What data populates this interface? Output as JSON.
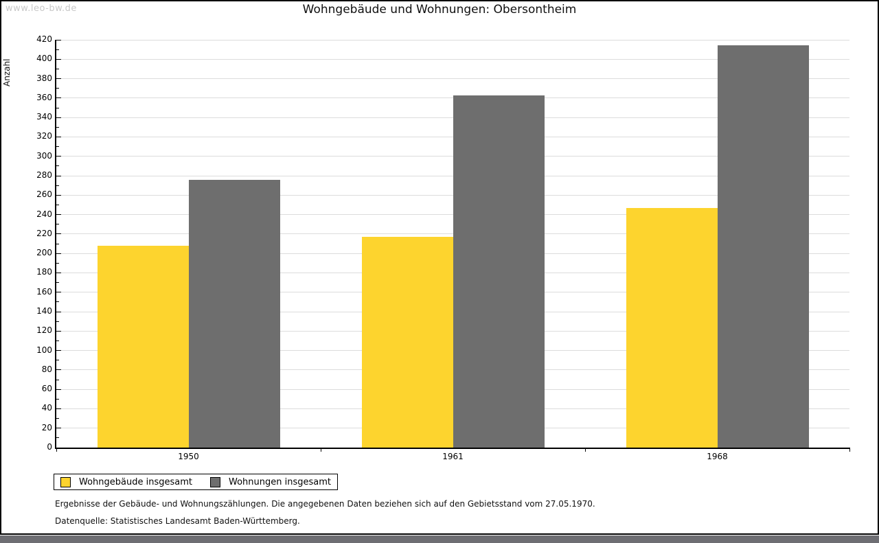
{
  "watermark": "www.leo-bw.de",
  "title": "Wohngebäude und Wohnungen: Obersontheim",
  "chart_data": {
    "type": "bar",
    "title": "Wohngebäude und Wohnungen: Obersontheim",
    "categories": [
      "1950",
      "1961",
      "1968"
    ],
    "series": [
      {
        "name": "Wohngebäude insgesamt",
        "color": "#fdd42e",
        "values": [
          208,
          217,
          247
        ]
      },
      {
        "name": "Wohnungen insgesamt",
        "color": "#6e6e6e",
        "values": [
          276,
          363,
          414
        ]
      }
    ],
    "xlabel": "",
    "ylabel": "Anzahl",
    "ylim": [
      0,
      420
    ],
    "ytick_major": 20,
    "ytick_minor": 10,
    "grid": true,
    "gridline_color": "#dcdcdc",
    "legend_position": "bottom-left"
  },
  "footer": {
    "note": "Ergebnisse der Gebäude- und Wohnungszählungen. Die angegebenen Daten beziehen sich auf den Gebietsstand vom 27.05.1970.",
    "source": "Datenquelle: Statistisches Landesamt Baden-Württemberg."
  }
}
